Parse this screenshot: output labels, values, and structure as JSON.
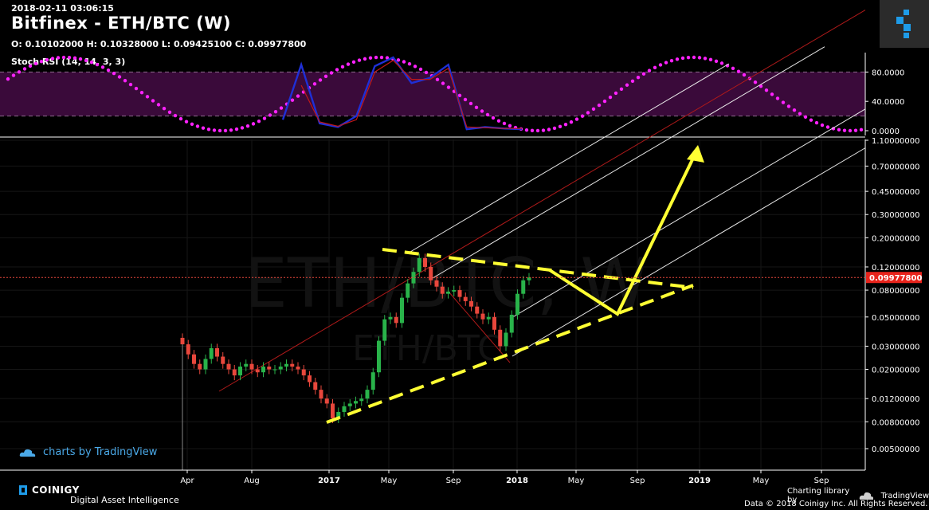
{
  "header": {
    "timestamp": "2018-02-11 03:06:15",
    "title": "Bitfinex - ETH/BTC (W)",
    "ohlc": "O: 0.10102000 H: 0.10328000 L: 0.09425100 C: 0.09977800",
    "indicator_label": "Stoch RSI (14, 14, 3, 3)"
  },
  "watermark": {
    "main": "ETH/BTC, W",
    "sub": "ETH/BTC"
  },
  "footer": {
    "tv_credit": "charts by TradingView",
    "brand": "COINIGY",
    "tagline": "Digital Asset Intelligence",
    "charting_library": "Charting library by",
    "tv_name": "TradingView",
    "data_credit": "Data © 2018   Coinigy Inc. All Rights Reserved."
  },
  "colors": {
    "up": "#29b34a",
    "down": "#e8473c",
    "pitchfork": "#e8e8e8",
    "median": "#b01a1a",
    "yellow": "#ffff33",
    "stoch_k": "#1f2fd6",
    "stoch_d": "#c01818",
    "pink": "#ff22ff",
    "band": "#3a0a3a",
    "accent_blue": "#1e9be8"
  },
  "chart_data": [
    {
      "type": "line",
      "name": "Stoch RSI",
      "ylim": [
        0,
        100
      ],
      "y_ticks": [
        80,
        40,
        0
      ],
      "y_tick_labels": [
        "80.0000",
        "40.0000",
        "0.0000"
      ],
      "bands": [
        20,
        80
      ],
      "x_index": [
        0,
        2,
        4,
        6,
        8,
        10,
        12,
        14,
        16,
        18,
        20,
        22,
        24,
        26,
        28,
        30,
        32,
        34,
        36,
        38,
        40,
        42,
        44,
        46,
        48,
        50
      ],
      "series": [
        {
          "name": "K",
          "values": [
            null,
            null,
            null,
            null,
            null,
            null,
            null,
            null,
            null,
            null,
            null,
            null,
            15,
            90,
            10,
            5,
            20,
            88,
            100,
            65,
            72,
            90,
            2,
            5,
            3,
            2
          ]
        },
        {
          "name": "D",
          "values": [
            null,
            null,
            null,
            null,
            null,
            null,
            null,
            null,
            null,
            null,
            null,
            null,
            null,
            62,
            12,
            6,
            15,
            80,
            96,
            70,
            70,
            85,
            5,
            4,
            3,
            3
          ]
        }
      ],
      "note_series": {
        "name": "overlay",
        "style": "dotted wave",
        "period_weeks": 50,
        "min": 0,
        "max": 100
      }
    },
    {
      "type": "candlestick",
      "name": "ETH/BTC weekly",
      "scale": "log",
      "y_ticks": [
        1.1,
        0.7,
        0.45,
        0.3,
        0.2,
        0.12,
        0.08,
        0.05,
        0.03,
        0.02,
        0.012,
        0.008,
        0.005
      ],
      "y_tick_labels": [
        "1.10000000",
        "0.70000000",
        "0.45000000",
        "0.30000000",
        "0.20000000",
        "0.12000000",
        "0.08000000",
        "0.05000000",
        "0.03000000",
        "0.02000000",
        "0.01200000",
        "0.00800000",
        "0.00500000"
      ],
      "x_labels": [
        "Apr",
        "Aug",
        "2017",
        "May",
        "Sep",
        "2018",
        "May",
        "Sep",
        "2019",
        "May",
        "Sep"
      ],
      "last_price": 0.099778,
      "last_price_label": "0.09977800",
      "candles_close": [
        0.031,
        0.026,
        0.022,
        0.02,
        0.024,
        0.029,
        0.025,
        0.022,
        0.02,
        0.018,
        0.021,
        0.022,
        0.02,
        0.019,
        0.021,
        0.02,
        0.02,
        0.021,
        0.022,
        0.021,
        0.02,
        0.018,
        0.016,
        0.014,
        0.012,
        0.011,
        0.0085,
        0.0095,
        0.0105,
        0.011,
        0.0115,
        0.012,
        0.014,
        0.019,
        0.033,
        0.048,
        0.05,
        0.045,
        0.07,
        0.09,
        0.11,
        0.14,
        0.12,
        0.095,
        0.085,
        0.075,
        0.078,
        0.08,
        0.071,
        0.066,
        0.06,
        0.053,
        0.048,
        0.05,
        0.04,
        0.03,
        0.038,
        0.052,
        0.075,
        0.095,
        0.0998
      ]
    }
  ]
}
